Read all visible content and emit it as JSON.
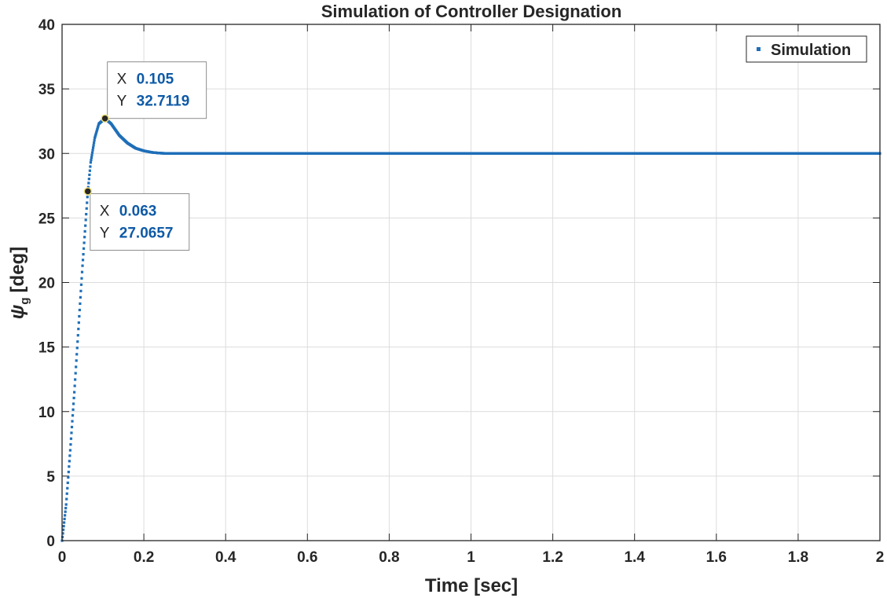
{
  "chart_data": {
    "type": "scatter",
    "title": "Simulation of Controller Designation",
    "xlabel": "Time [sec]",
    "ylabel_symbol": "ψ",
    "ylabel_subscript": "g",
    "ylabel_unit": "[deg]",
    "xlim": [
      0,
      2
    ],
    "ylim": [
      0,
      40
    ],
    "xticks": [
      "0",
      "0.2",
      "0.4",
      "0.6",
      "0.8",
      "1",
      "1.2",
      "1.4",
      "1.6",
      "1.8",
      "2"
    ],
    "yticks": [
      "0",
      "5",
      "10",
      "15",
      "20",
      "25",
      "30",
      "35",
      "40"
    ],
    "grid": true,
    "legend_position": "top-right",
    "series": [
      {
        "name": "Simulation",
        "color": "#1f6fb8",
        "marker": "point",
        "sample_step": 0.001,
        "key_points": [
          [
            0,
            0
          ],
          [
            0.01,
            2.8
          ],
          [
            0.02,
            7.0
          ],
          [
            0.03,
            11.5
          ],
          [
            0.04,
            16.4
          ],
          [
            0.05,
            21.3
          ],
          [
            0.063,
            27.0657
          ],
          [
            0.07,
            29.3
          ],
          [
            0.08,
            31.2
          ],
          [
            0.09,
            32.3
          ],
          [
            0.105,
            32.7119
          ],
          [
            0.12,
            32.3
          ],
          [
            0.14,
            31.4
          ],
          [
            0.16,
            30.8
          ],
          [
            0.18,
            30.4
          ],
          [
            0.2,
            30.2
          ],
          [
            0.22,
            30.08
          ],
          [
            0.24,
            30.02
          ],
          [
            0.26,
            30.0
          ],
          [
            2.0,
            30.0
          ]
        ]
      }
    ],
    "datatips": [
      {
        "x_label": "X",
        "x_value": "0.105",
        "y_label": "Y",
        "y_value": "32.7119",
        "x": 0.105,
        "y": 32.7119
      },
      {
        "x_label": "X",
        "x_value": "0.063",
        "y_label": "Y",
        "y_value": "27.0657",
        "x": 0.063,
        "y": 27.0657
      }
    ]
  }
}
